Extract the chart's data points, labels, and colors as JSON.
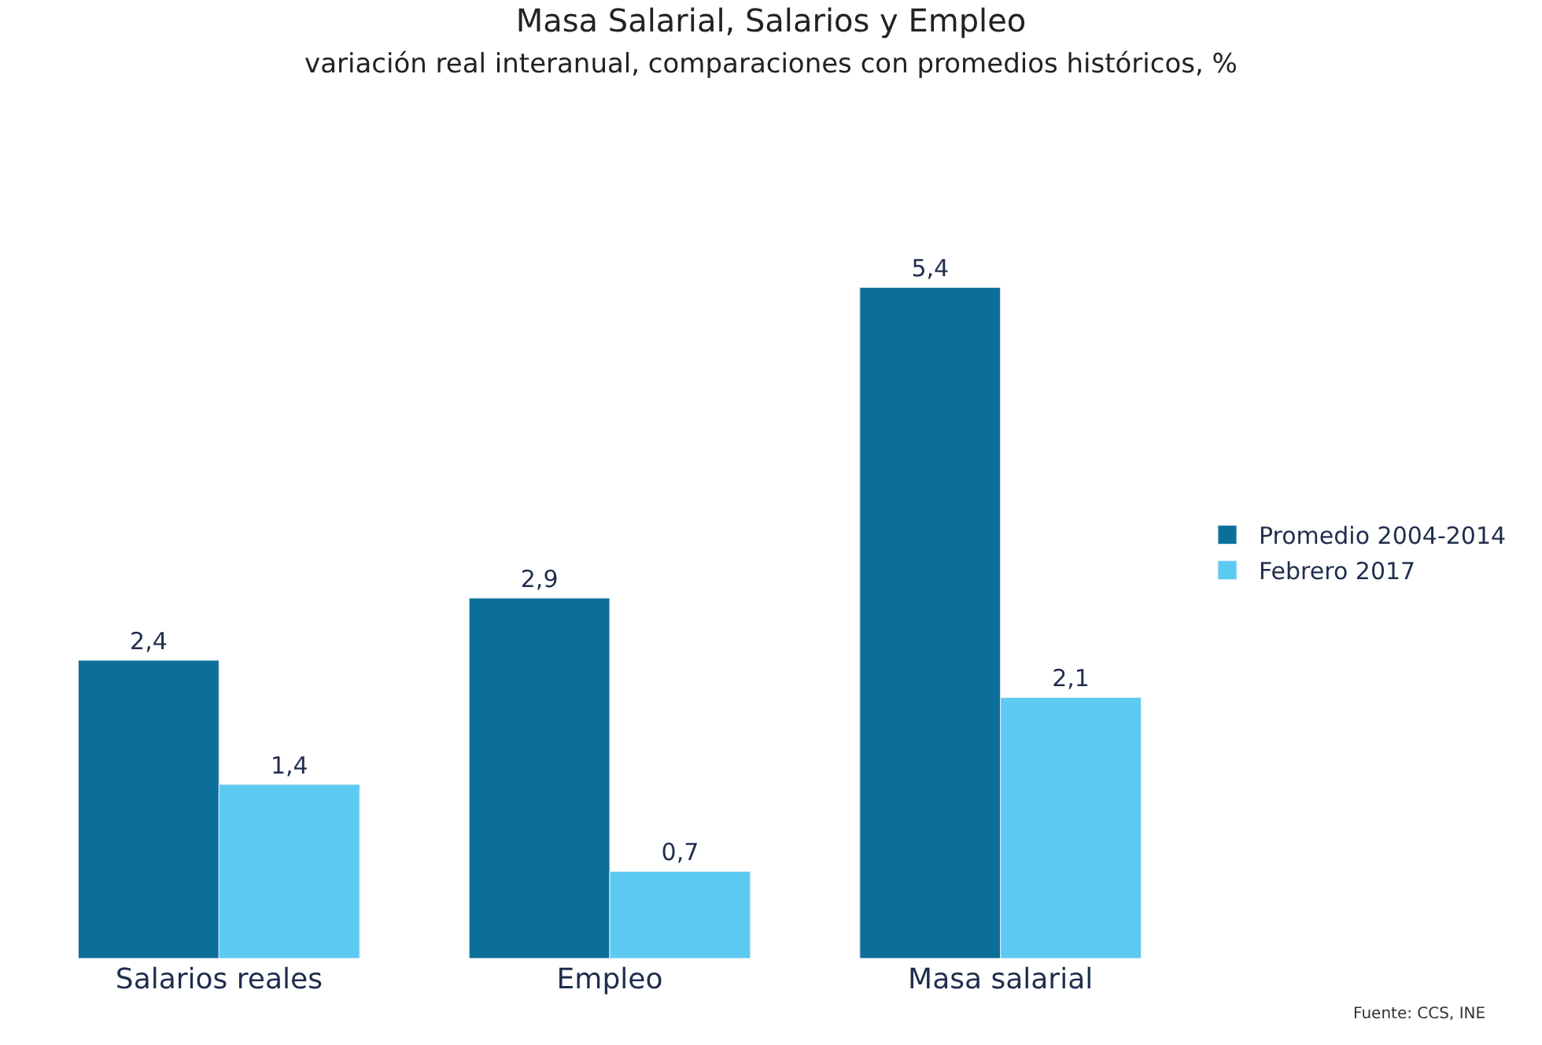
{
  "chart_data": {
    "type": "bar",
    "title": "Masa Salarial, Salarios y Empleo",
    "subtitle": "variación real interanual, comparaciones con promedios históricos, %",
    "categories": [
      "Salarios reales",
      "Empleo",
      "Masa salarial"
    ],
    "series": [
      {
        "name": "Promedio 2004-2014",
        "color": "#0b6f99",
        "values": [
          2.4,
          2.9,
          5.4
        ],
        "value_labels": [
          "2,4",
          "2,9",
          "5,4"
        ]
      },
      {
        "name": "Febrero 2017",
        "color": "#5ccbf3",
        "values": [
          1.4,
          0.7,
          2.1
        ],
        "value_labels": [
          "1,4",
          "0,7",
          "2,1"
        ]
      }
    ],
    "legend": "right",
    "annotations": [
      "Fuente: CCS, INE"
    ]
  }
}
